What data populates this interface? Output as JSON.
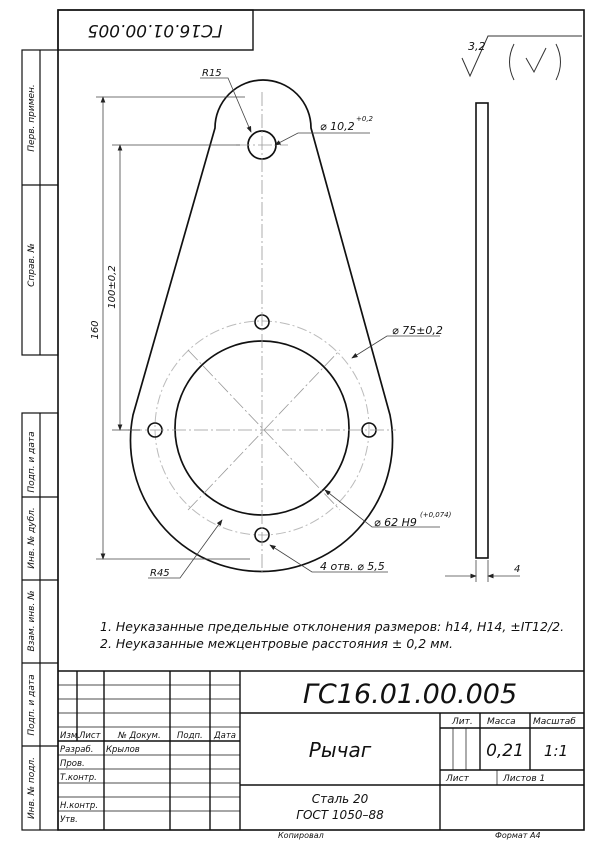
{
  "doc": {
    "designation": "ГС16.01.00.005",
    "designation_rotated": "ГС16.01.00.005",
    "part_name": "Рычаг",
    "material_line1": "Сталь 20",
    "material_line2": "ГОСТ 1050–88",
    "mass": "0,21",
    "scale": "1:1",
    "sheet_label": "Лист",
    "sheets_label": "Листов 1",
    "format": "Формат А4",
    "copied": "Копировал"
  },
  "roughness": {
    "value": "3,2"
  },
  "title_block": {
    "col_headers": {
      "izm": "Изм.",
      "list": "Лист",
      "doc": "№ Докум.",
      "sign": "Подп.",
      "date": "Дата"
    },
    "rows": [
      {
        "role": "Разраб.",
        "name": "Крылов"
      },
      {
        "role": "Пров.",
        "name": ""
      },
      {
        "role": "Т.контр.",
        "name": ""
      },
      {
        "role": "",
        "name": ""
      },
      {
        "role": "Н.контр.",
        "name": ""
      },
      {
        "role": "Утв.",
        "name": ""
      }
    ],
    "lit_header": "Лит.",
    "mass_header": "Масса",
    "scale_header": "Масштаб"
  },
  "side_stamps": {
    "perv_primen": "Перв. примен.",
    "sprav": "Справ. №",
    "podp_data_1": "Подп. и дата",
    "inv_dubl": "Инв. № дубл.",
    "vzam_inv": "Взам. инв. №",
    "podp_data_2": "Подп. и дата",
    "inv_podl": "Инв. № подл."
  },
  "dimensions": {
    "r15": "R15",
    "hole_top": "⌀ 10,2",
    "hole_top_tol": "+0,2",
    "len_160": "160",
    "len_100": "100±0,2",
    "pcd": "⌀ 75±0,2",
    "bore": "⌀ 62 H9",
    "bore_tol": "(+0,074)",
    "r45": "R45",
    "holes": "4 отв. ⌀ 5,5",
    "thickness": "4"
  },
  "notes": [
    "1. Неуказанные предельные отклонения размеров: h14, H14, ±IT12/2.",
    "2. Неуказанные межцентровые расстояния ± 0,2 мм."
  ]
}
